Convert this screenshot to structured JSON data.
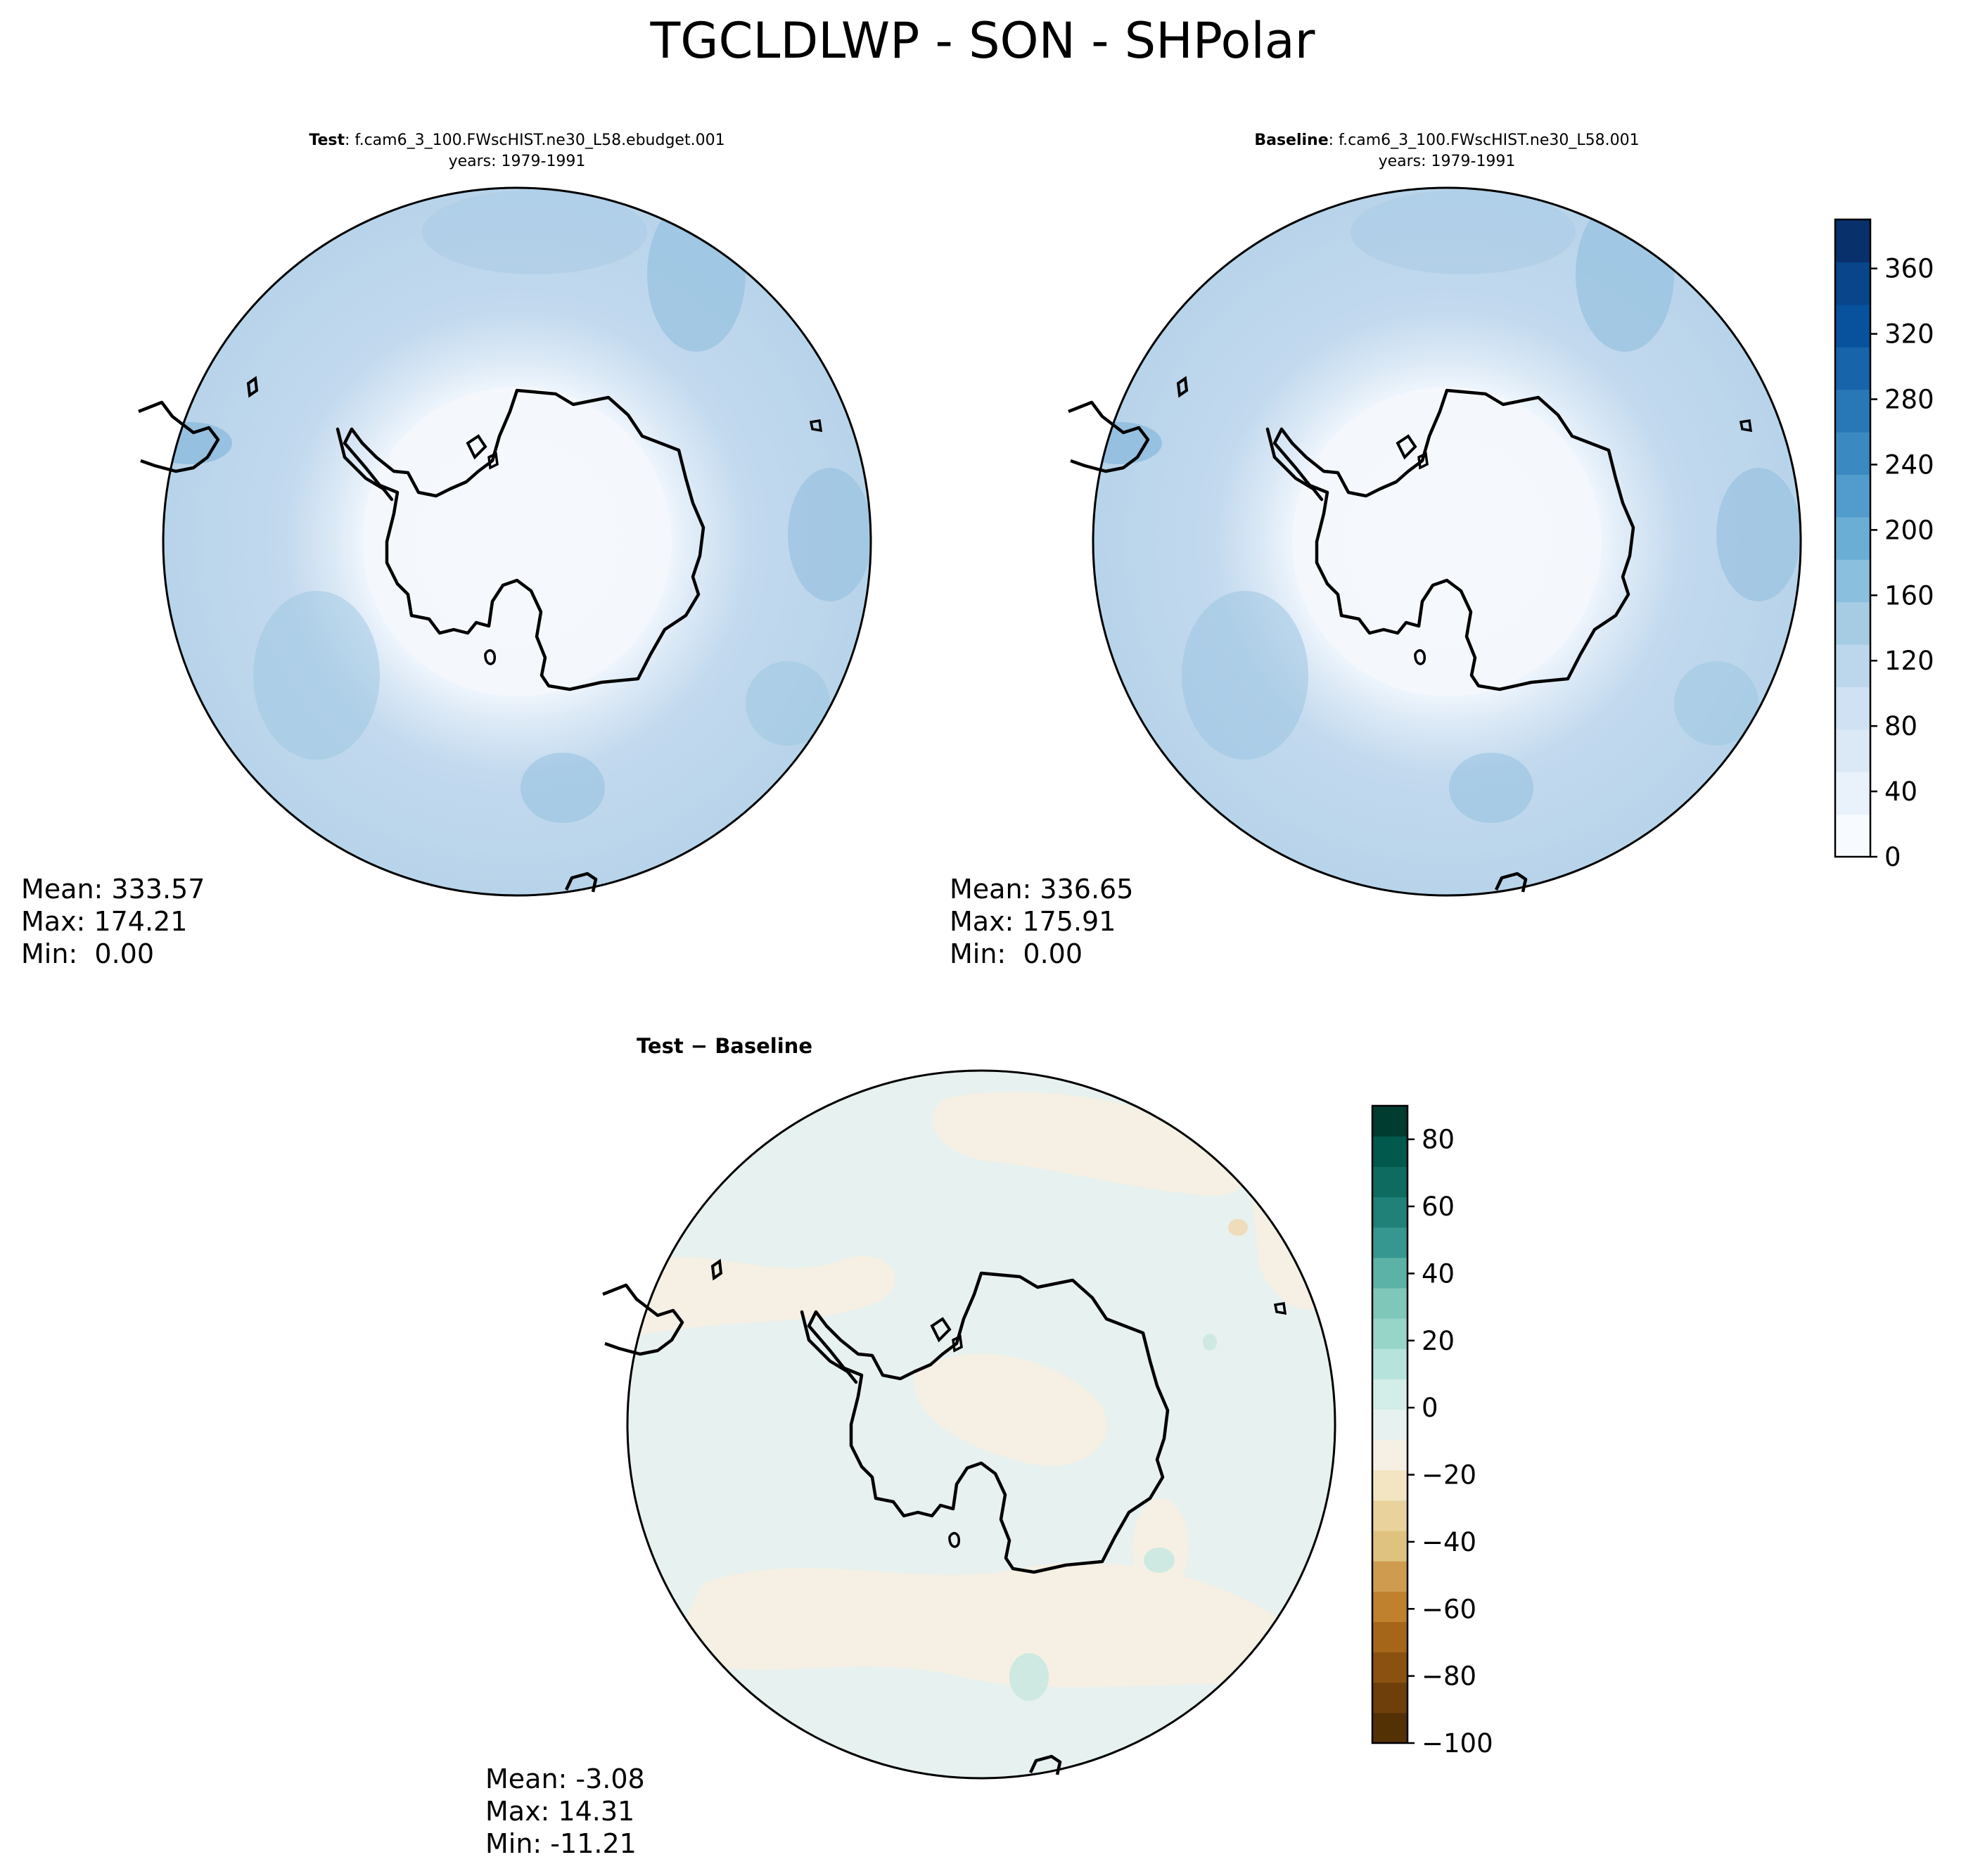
{
  "figure": {
    "title": "TGCLDLWP - SON - SHPolar"
  },
  "panels": [
    {
      "id": "test",
      "header_bold": "Test",
      "header_rest": ": f.cam6_3_100.FWscHIST.ne30_L58.ebudget.001",
      "subheader": "years: 1979-1991",
      "stats": {
        "mean": "Mean: 333.57",
        "max": "Max: 174.21",
        "min": "Min:  0.00"
      }
    },
    {
      "id": "baseline",
      "header_bold": "Baseline",
      "header_rest": ": f.cam6_3_100.FWscHIST.ne30_L58.001",
      "subheader": "years: 1979-1991",
      "stats": {
        "mean": "Mean: 336.65",
        "max": "Max: 175.91",
        "min": "Min:  0.00"
      }
    },
    {
      "id": "diff",
      "header_bold": "Test − Baseline",
      "header_rest": "",
      "subheader": "",
      "stats": {
        "mean": "Mean: -3.08",
        "max": "Max: 14.31",
        "min": "Min: -11.21"
      }
    }
  ],
  "colorbars": {
    "main": {
      "colormap": "Blues",
      "range": [
        0,
        390
      ],
      "ticks": [
        0,
        40,
        80,
        120,
        160,
        200,
        240,
        280,
        320,
        360
      ],
      "tick_labels": [
        "0",
        "40",
        "80",
        "120",
        "160",
        "200",
        "240",
        "280",
        "320",
        "360"
      ],
      "colors": [
        "#f7fbff",
        "#e9f2fb",
        "#dbe9f6",
        "#cfe1f2",
        "#bcd7eb",
        "#a6cce4",
        "#8ac0de",
        "#6aaed6",
        "#519ccc",
        "#3a89c1",
        "#2878b8",
        "#1764ab",
        "#08519c",
        "#08458a",
        "#08306b"
      ]
    },
    "diff": {
      "colormap": "BrBG",
      "range": [
        -100,
        90
      ],
      "ticks": [
        -100,
        -80,
        -60,
        -40,
        -20,
        0,
        20,
        40,
        60,
        80
      ],
      "tick_labels": [
        "−100",
        "−80",
        "−60",
        "−40",
        "−20",
        "0",
        "20",
        "40",
        "60",
        "80"
      ],
      "colors": [
        "#543005",
        "#6e3f0a",
        "#8a5110",
        "#a6661a",
        "#bf812d",
        "#cf9c4f",
        "#dfc27d",
        "#ead29d",
        "#f3e5c2",
        "#f5f0e3",
        "#e7f1ef",
        "#d3ede8",
        "#b6e3dc",
        "#97d5c9",
        "#7fc7b9",
        "#5cb2a6",
        "#35978f",
        "#1f8178",
        "#0e6b5f",
        "#01584c",
        "#003c30"
      ]
    }
  },
  "chart_data": [
    {
      "type": "heatmap",
      "title": "Test: f.cam6_3_100.FWscHIST.ne30_L58.ebudget.001",
      "subtitle": "years: 1979-1991",
      "projection": "south-polar-stereographic",
      "region": "Antarctica",
      "colorbar": {
        "range": [
          0,
          390
        ],
        "colormap": "Blues"
      },
      "stats": {
        "mean": 333.57,
        "max": 174.21,
        "min": 0.0
      },
      "note": "near zero over the Antarctic continent, about 80-200 over the Southern Ocean"
    },
    {
      "type": "heatmap",
      "title": "Baseline: f.cam6_3_100.FWscHIST.ne30_L58.001",
      "subtitle": "years: 1979-1991",
      "projection": "south-polar-stereographic",
      "region": "Antarctica",
      "colorbar": {
        "range": [
          0,
          390
        ],
        "colormap": "Blues"
      },
      "stats": {
        "mean": 336.65,
        "max": 175.91,
        "min": 0.0
      }
    },
    {
      "type": "heatmap",
      "title": "Test − Baseline",
      "projection": "south-polar-stereographic",
      "region": "Antarctica",
      "colorbar": {
        "range": [
          -100,
          90
        ],
        "colormap": "BrBG"
      },
      "stats": {
        "mean": -3.08,
        "max": 14.31,
        "min": -11.21
      },
      "note": "differences mostly within -20 to 20, small patches near +20"
    }
  ]
}
